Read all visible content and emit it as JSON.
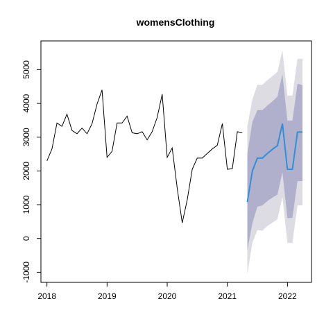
{
  "chart_data": {
    "type": "line",
    "title": "womensClothing",
    "xlabel": "",
    "ylabel": "",
    "xlim": [
      2017.9,
      2022.4
    ],
    "ylim": [
      -1300,
      5850
    ],
    "x_ticks": [
      2018,
      2019,
      2020,
      2021,
      2022
    ],
    "x_tick_labels": [
      "2018",
      "2019",
      "2020",
      "2021",
      "2022"
    ],
    "y_ticks": [
      -1000,
      0,
      1000,
      2000,
      3000,
      4000,
      5000
    ],
    "y_tick_labels": [
      "-1000",
      "0",
      "1000",
      "2000",
      "3000",
      "4000",
      "5000"
    ],
    "grid": false,
    "colors": {
      "history": "#000000",
      "forecast": "#2f8fd8",
      "band80": "#b0b0cc",
      "band95": "#dcdce2",
      "axes": "#000000"
    },
    "history": {
      "x": [
        2018.0,
        2018.083,
        2018.167,
        2018.25,
        2018.333,
        2018.417,
        2018.5,
        2018.583,
        2018.667,
        2018.75,
        2018.833,
        2018.917,
        2019.0,
        2019.083,
        2019.167,
        2019.25,
        2019.333,
        2019.417,
        2019.5,
        2019.583,
        2019.667,
        2019.75,
        2019.833,
        2019.917,
        2020.0,
        2020.083,
        2020.167,
        2020.25,
        2020.333,
        2020.417,
        2020.5,
        2020.583,
        2020.667,
        2020.75,
        2020.833,
        2020.917,
        2021.0,
        2021.083,
        2021.167,
        2021.25
      ],
      "y": [
        2300,
        2650,
        3420,
        3320,
        3680,
        3200,
        3100,
        3270,
        3100,
        3400,
        3980,
        4400,
        2400,
        2580,
        3420,
        3420,
        3620,
        3130,
        3100,
        3160,
        2920,
        3160,
        3580,
        4270,
        2400,
        2680,
        1480,
        460,
        1150,
        2050,
        2380,
        2380,
        2520,
        2650,
        2760,
        3400,
        2050,
        2070,
        3160,
        3130
      ]
    },
    "forecast": {
      "x": [
        2021.333,
        2021.417,
        2021.5,
        2021.583,
        2021.667,
        2021.75,
        2021.833,
        2021.917,
        2022.0,
        2022.083,
        2022.167,
        2022.25
      ],
      "mean": [
        1080,
        2000,
        2380,
        2380,
        2520,
        2640,
        2750,
        3400,
        2050,
        2050,
        3150,
        3150
      ],
      "lo80": [
        -350,
        450,
        940,
        980,
        1110,
        1210,
        1300,
        1960,
        600,
        610,
        1700,
        1700
      ],
      "hi80": [
        2500,
        3450,
        3800,
        3800,
        3940,
        4060,
        4200,
        4870,
        3490,
        3490,
        4580,
        4540
      ],
      "lo95": [
        -1060,
        -120,
        250,
        230,
        370,
        470,
        570,
        1220,
        -130,
        -130,
        980,
        980
      ],
      "hi95": [
        3320,
        4120,
        4550,
        4550,
        4690,
        4810,
        4930,
        5570,
        4230,
        4230,
        5320,
        5320
      ]
    }
  }
}
